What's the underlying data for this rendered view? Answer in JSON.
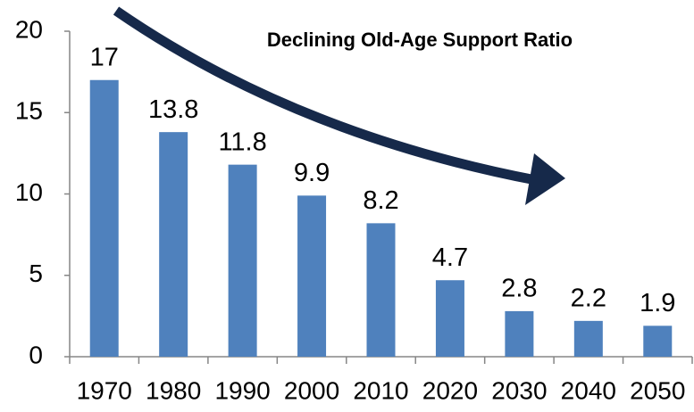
{
  "chart_data": {
    "type": "bar",
    "title": "Declining Old-Age Support Ratio",
    "categories": [
      "1970",
      "1980",
      "1990",
      "2000",
      "2010",
      "2020",
      "2030",
      "2040",
      "2050"
    ],
    "values": [
      17,
      13.8,
      11.8,
      9.9,
      8.2,
      4.7,
      2.8,
      2.2,
      1.9
    ],
    "color": "#4f81bd",
    "ylim": [
      0,
      20
    ],
    "yticks": [
      0,
      5,
      10,
      15,
      20
    ],
    "grid": false
  }
}
